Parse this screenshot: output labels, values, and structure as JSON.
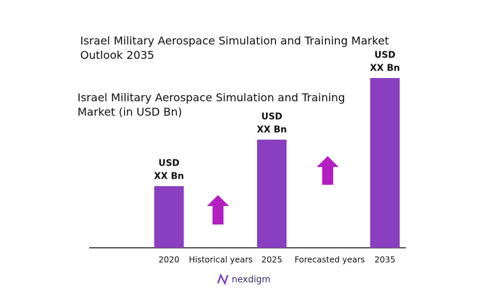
{
  "chart_data": {
    "type": "bar",
    "title": "Israel Military Aerospace Simulation and Training Market Outlook 2035",
    "subtitle": "Israel Military Aerospace Simulation and Training Market (in USD Bn)",
    "categories": [
      "2020",
      "2025",
      "2035"
    ],
    "values": [
      90,
      158,
      248
    ],
    "value_labels": [
      [
        "USD",
        "XX Bn"
      ],
      [
        "USD",
        "XX Bn"
      ],
      [
        "USD",
        "XX Bn"
      ]
    ],
    "color": "#8a3fc0",
    "annotations": [
      "Historical years",
      "Forecasted years"
    ],
    "brand": "nexdigm"
  }
}
